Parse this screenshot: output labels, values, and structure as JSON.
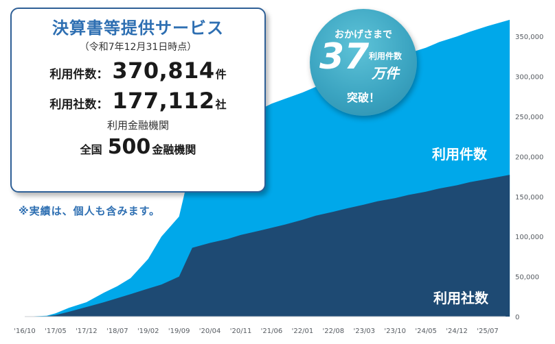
{
  "chart_data": {
    "type": "area",
    "x_tick_labels": [
      "'16/10",
      "'17/05",
      "'17/12",
      "'18/07",
      "'19/02",
      "'19/09",
      "'20/04",
      "'20/11",
      "'21/06",
      "'22/01",
      "'22/08",
      "'23/03",
      "'23/10",
      "'24/05",
      "'24/12",
      "'25/07"
    ],
    "y_tick_labels": [
      "0",
      "50,000",
      "100,000",
      "150,000",
      "200,000",
      "250,000",
      "300,000",
      "350,000"
    ],
    "ylim": [
      0,
      375000
    ],
    "x": [
      "2016-10",
      "2017-03",
      "2017-05",
      "2017-08",
      "2017-12",
      "2018-04",
      "2018-07",
      "2018-10",
      "2019-02",
      "2019-05",
      "2019-09",
      "2019-12",
      "2020-04",
      "2020-08",
      "2020-11",
      "2021-03",
      "2021-06",
      "2021-09",
      "2022-01",
      "2022-04",
      "2022-08",
      "2022-11",
      "2023-03",
      "2023-06",
      "2023-10",
      "2024-01",
      "2024-05",
      "2024-08",
      "2024-12",
      "2025-03",
      "2025-07",
      "2025-12"
    ],
    "series": [
      {
        "name": "利用件数",
        "values": [
          0,
          1000,
          4000,
          11000,
          18000,
          30000,
          38000,
          48000,
          72000,
          100000,
          125000,
          195000,
          220000,
          240000,
          250000,
          258000,
          266000,
          272000,
          280000,
          287000,
          294000,
          300000,
          308000,
          315000,
          322000,
          329000,
          336000,
          343000,
          350000,
          356000,
          363000,
          370814
        ]
      },
      {
        "name": "利用社数",
        "values": [
          0,
          500,
          2000,
          6000,
          12000,
          18000,
          23000,
          28000,
          35000,
          40000,
          50000,
          86000,
          92000,
          97000,
          102000,
          107000,
          111000,
          115000,
          121000,
          126000,
          131000,
          135000,
          140000,
          144000,
          148000,
          152000,
          156000,
          160000,
          164000,
          168000,
          172000,
          177112
        ]
      }
    ]
  },
  "info_box": {
    "title": "決算書等提供サービス",
    "date": "（令和7年12月31日時点）",
    "usage_label": "利用件数：",
    "usage_value": "370,814",
    "usage_unit": "件",
    "company_label": "利用社数：",
    "company_value": "177,112",
    "company_unit": "社",
    "institutions_label": "利用金融機関",
    "institutions_prefix": "全国",
    "institutions_value": "500",
    "institutions_unit": "金融機関"
  },
  "note": "※実績は、個人も含みます。",
  "milestone": {
    "pre": "おかげさまで",
    "number": "37",
    "sub_label": "利用件数",
    "unit": "万件",
    "post": "突破！"
  },
  "colors": {
    "usage_area": "#00a8ea",
    "company_area": "#1e4a73",
    "box_border": "#2e5f96",
    "title_text": "#2e6fb2"
  }
}
